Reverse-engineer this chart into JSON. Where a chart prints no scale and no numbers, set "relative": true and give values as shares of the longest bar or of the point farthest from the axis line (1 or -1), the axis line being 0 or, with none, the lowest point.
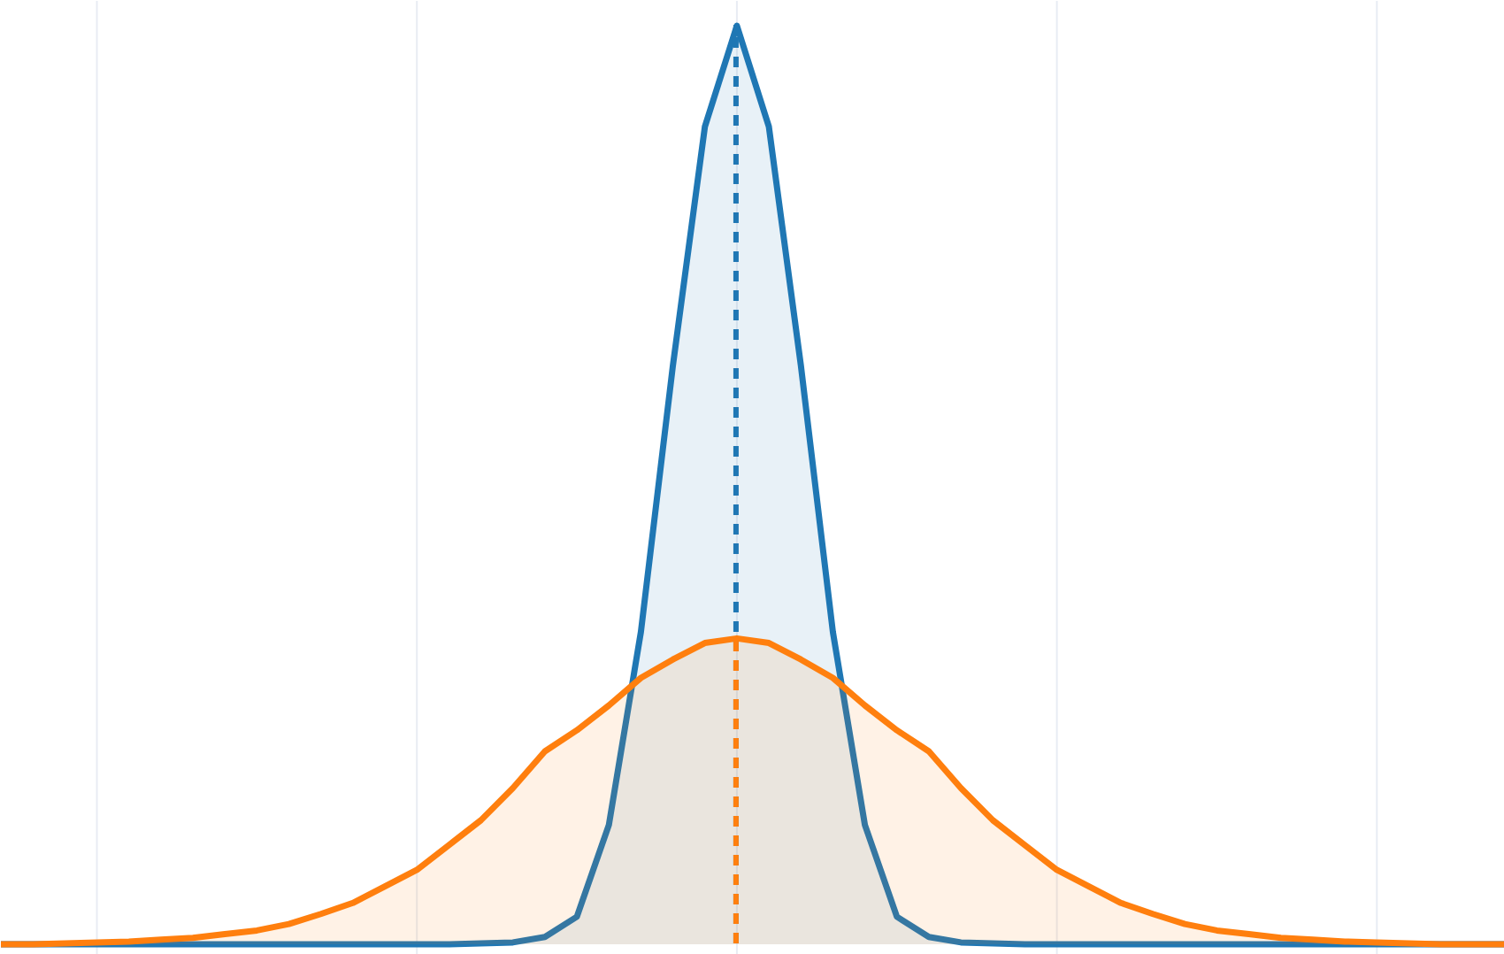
{
  "chart_data": {
    "type": "area",
    "relative": true,
    "grid": "x",
    "tick_labels": false,
    "categories": [
      null,
      null,
      null,
      null,
      null,
      null,
      null,
      null,
      null,
      null,
      null,
      null,
      null,
      null,
      null,
      null,
      null,
      null,
      null,
      null,
      null,
      null,
      null,
      null,
      null,
      null,
      null,
      null,
      null,
      null,
      null,
      null,
      null,
      null,
      null,
      null,
      null,
      null,
      null,
      null,
      null,
      null,
      null,
      null,
      null,
      null,
      null,
      null
    ],
    "series": [
      {
        "color": "#1f77b4",
        "values": [
          0,
          0,
          0,
          0,
          0,
          0,
          0,
          0,
          0,
          0,
          0,
          0,
          0,
          0,
          0,
          0.001,
          0.002,
          0.008,
          0.03,
          0.13,
          0.34,
          0.63,
          0.89,
          1,
          0.89,
          0.63,
          0.34,
          0.13,
          0.03,
          0.008,
          0.002,
          0.001,
          0,
          0,
          0,
          0,
          0,
          0,
          0,
          0,
          0,
          0,
          0,
          0,
          0,
          0,
          0,
          0
        ]
      },
      {
        "color": "#ff7f0e",
        "values": [
          0,
          0,
          0.001,
          0.002,
          0.003,
          0.005,
          0.007,
          0.011,
          0.015,
          0.022,
          0.033,
          0.045,
          0.063,
          0.081,
          0.108,
          0.135,
          0.17,
          0.21,
          0.233,
          0.26,
          0.29,
          0.31,
          0.328,
          0.333,
          0.328,
          0.31,
          0.29,
          0.26,
          0.233,
          0.21,
          0.17,
          0.135,
          0.108,
          0.081,
          0.063,
          0.045,
          0.033,
          0.022,
          0.015,
          0.011,
          0.007,
          0.005,
          0.003,
          0.002,
          0.001,
          0,
          0,
          0
        ]
      }
    ]
  }
}
